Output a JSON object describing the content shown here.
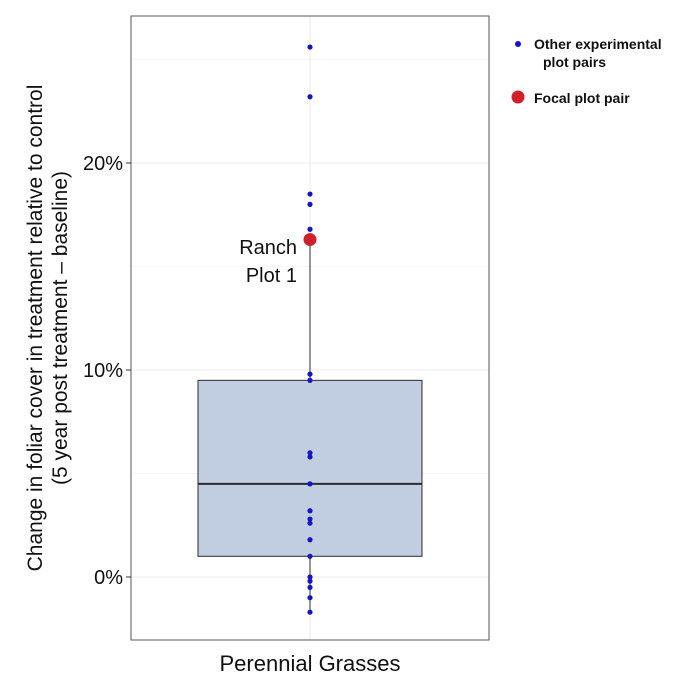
{
  "chart_data": {
    "type": "box",
    "xlabel": "Perennial Grasses",
    "ylabel_lines": [
      "Change in foliar cover in treatment relative to control",
      "(5 year post treatment – baseline)"
    ],
    "ylim": [
      -3,
      27
    ],
    "y_ticks": [
      0,
      10,
      20
    ],
    "y_tick_labels": [
      "0%",
      "10%",
      "20%"
    ],
    "grid": true,
    "box": {
      "category": "Perennial Grasses",
      "q1": 1.0,
      "median": 4.5,
      "q3": 9.5,
      "whisker_low": -1.8,
      "whisker_high": 16.3
    },
    "series": [
      {
        "name": "Other experimental plot pairs",
        "values": [
          25.6,
          23.2,
          18.5,
          18.0,
          16.8,
          9.8,
          9.5,
          6.0,
          5.8,
          4.5,
          3.2,
          2.8,
          2.6,
          1.8,
          1.0,
          0.0,
          -0.2,
          -0.5,
          -1.0,
          -1.7
        ]
      },
      {
        "name": "Focal plot pair",
        "values": [
          16.3
        ]
      }
    ],
    "annotation": {
      "lines": [
        "Ranch",
        "Plot 1"
      ]
    },
    "legend_labels": [
      [
        "Other experimental",
        "plot pairs"
      ],
      [
        "Focal plot pair"
      ]
    ],
    "legend_position": "top-right",
    "colors": {
      "other": "#1414c8",
      "focal": "#d0202a",
      "box_fill": "#c1cde0",
      "box_stroke": "#2b2b2b",
      "grid": "#ebebeb",
      "panel_border": "#555555"
    }
  }
}
